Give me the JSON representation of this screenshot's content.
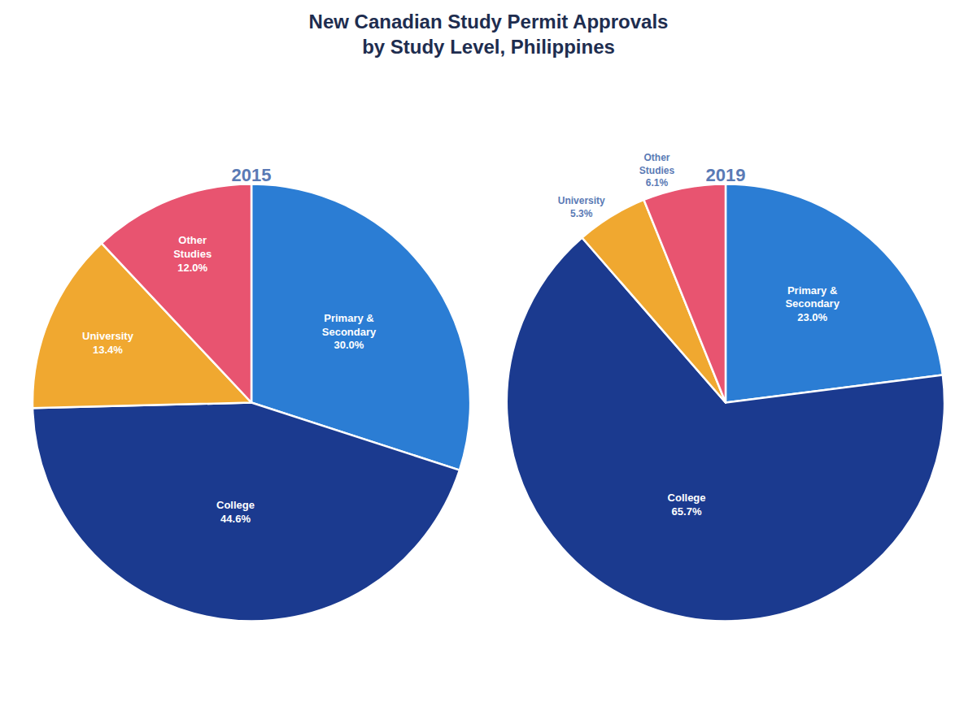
{
  "title": "New Canadian Study Permit Approvals\nby Study Level, Philippines",
  "chart_data": [
    {
      "type": "pie",
      "title": "2015",
      "categories": [
        "Primary &\nSecondary",
        "College",
        "University",
        "Other\nStudies"
      ],
      "values": [
        30.0,
        44.6,
        13.4,
        12.0
      ],
      "value_labels": [
        "30.0%",
        "44.6%",
        "13.4%",
        "12.0%"
      ],
      "colors": [
        "#2b7dd4",
        "#1b3a8f",
        "#f0a830",
        "#e85470"
      ],
      "data_labels": true
    },
    {
      "type": "pie",
      "title": "2019",
      "categories": [
        "Primary &\nSecondary",
        "College",
        "University",
        "Other\nStudies"
      ],
      "values": [
        23.0,
        65.7,
        5.3,
        6.1
      ],
      "value_labels": [
        "23.0%",
        "65.7%",
        "5.3%",
        "6.1%"
      ],
      "colors": [
        "#2b7dd4",
        "#1b3a8f",
        "#f0a830",
        "#e85470"
      ],
      "data_labels": true
    }
  ]
}
